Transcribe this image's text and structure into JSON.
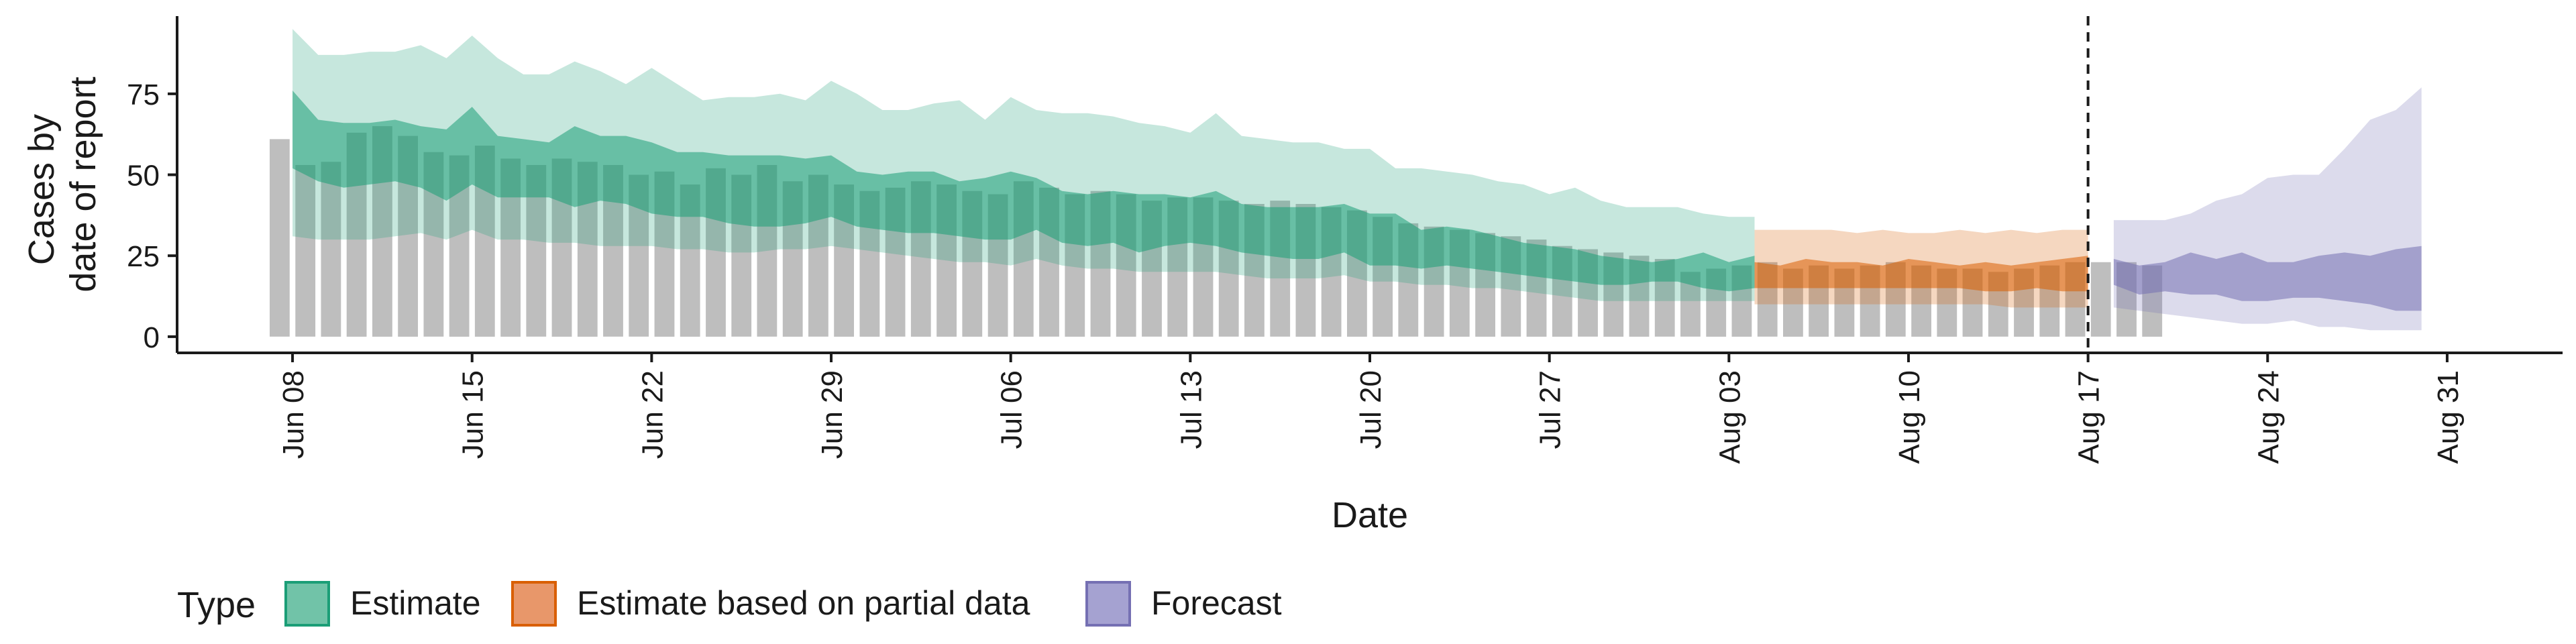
{
  "chart_data": {
    "type": "area",
    "xlabel": "Date",
    "ylabel": [
      "Cases by",
      "date of report"
    ],
    "x_tick_labels": [
      "Jun 08",
      "Jun 15",
      "Jun 22",
      "Jun 29",
      "Jul 06",
      "Jul 13",
      "Jul 20",
      "Jul 27",
      "Aug 03",
      "Aug 10",
      "Aug 17",
      "Aug 24",
      "Aug 31"
    ],
    "x_tick_days": [
      0,
      7,
      14,
      21,
      28,
      35,
      42,
      49,
      56,
      63,
      70,
      77,
      84
    ],
    "x_range_days": [
      -4.5,
      88.5
    ],
    "y_ticks": [
      0,
      25,
      50,
      75
    ],
    "ylim": [
      -5,
      99
    ],
    "forecast_start_day": 70,
    "legend": {
      "title": "Type",
      "position": "bottom",
      "entries": [
        {
          "label": "Estimate",
          "fill": "#71c3a8",
          "stroke": "#1b9e77"
        },
        {
          "label": "Estimate based on partial data",
          "fill": "#e8976a",
          "stroke": "#d95f02"
        },
        {
          "label": "Forecast",
          "fill": "#a5a2d1",
          "stroke": "#7570b3"
        }
      ]
    },
    "colors": {
      "bars": "#bebebe",
      "estimate": "#1b9e77",
      "partial": "#d95f02",
      "forecast": "#7570b3"
    },
    "reported_cases": {
      "start_day": -0.5,
      "values": [
        61,
        53,
        54,
        63,
        65,
        62,
        57,
        56,
        59,
        55,
        53,
        55,
        54,
        53,
        50,
        51,
        47,
        52,
        50,
        53,
        48,
        50,
        47,
        45,
        46,
        48,
        47,
        45,
        44,
        48,
        46,
        44,
        45,
        44,
        42,
        43,
        43,
        42,
        41,
        42,
        41,
        40,
        39,
        37,
        35,
        34,
        33,
        32,
        31,
        30,
        28,
        27,
        26,
        25,
        24,
        20,
        21,
        22,
        23,
        21,
        22,
        21,
        22,
        23,
        22,
        21,
        21,
        20,
        21,
        22,
        23,
        23,
        23,
        22
      ]
    },
    "series": [
      {
        "type": "Estimate",
        "start_day": 0,
        "outer_upper": [
          95,
          87,
          87,
          88,
          88,
          90,
          86,
          93,
          86,
          81,
          81,
          85,
          82,
          78,
          83,
          78,
          73,
          74,
          74,
          75,
          73,
          79,
          75,
          70,
          70,
          72,
          73,
          67,
          74,
          70,
          69,
          69,
          68,
          66,
          65,
          63,
          69,
          62,
          61,
          60,
          60,
          58,
          58,
          52,
          52,
          51,
          50,
          48,
          47,
          44,
          46,
          42,
          40,
          40,
          40,
          38,
          37,
          37
        ],
        "upper": [
          76,
          67,
          66,
          66,
          67,
          65,
          64,
          71,
          62,
          61,
          60,
          65,
          62,
          62,
          60,
          57,
          57,
          56,
          56,
          56,
          55,
          56,
          51,
          50,
          51,
          51,
          48,
          49,
          51,
          49,
          45,
          44,
          45,
          44,
          44,
          43,
          45,
          41,
          40,
          40,
          40,
          41,
          38,
          38,
          33,
          34,
          33,
          31,
          29,
          28,
          27,
          25,
          24,
          23,
          24,
          26,
          23,
          25
        ],
        "lower": [
          52,
          48,
          46,
          47,
          48,
          46,
          42,
          47,
          43,
          43,
          43,
          40,
          42,
          41,
          38,
          37,
          37,
          35,
          34,
          34,
          35,
          37,
          34,
          33,
          32,
          32,
          31,
          30,
          30,
          33,
          29,
          28,
          29,
          26,
          28,
          29,
          28,
          26,
          25,
          24,
          24,
          26,
          22,
          22,
          21,
          22,
          21,
          20,
          19,
          18,
          17,
          16,
          16,
          17,
          17,
          15,
          14,
          15
        ],
        "outer_lower": [
          31,
          30,
          30,
          30,
          31,
          32,
          30,
          33,
          30,
          30,
          29,
          29,
          28,
          28,
          28,
          27,
          27,
          26,
          26,
          27,
          27,
          28,
          27,
          26,
          25,
          24,
          23,
          23,
          22,
          24,
          22,
          21,
          21,
          20,
          20,
          20,
          20,
          19,
          18,
          18,
          18,
          19,
          17,
          17,
          16,
          16,
          15,
          15,
          14,
          13,
          12,
          11,
          11,
          11,
          11,
          11,
          11,
          11
        ]
      },
      {
        "type": "Estimate based on partial data",
        "start_day": 57,
        "outer_upper": [
          33,
          33,
          33,
          33,
          32,
          33,
          32,
          32,
          33,
          32,
          33,
          32,
          33,
          33
        ],
        "upper": [
          23,
          22,
          24,
          23,
          23,
          22,
          24,
          23,
          22,
          23,
          22,
          23,
          24,
          25
        ],
        "lower": [
          15,
          15,
          15,
          15,
          15,
          15,
          15,
          15,
          15,
          14,
          14,
          15,
          14,
          14
        ],
        "outer_lower": [
          10,
          10,
          10,
          10,
          10,
          10,
          10,
          10,
          10,
          10,
          9,
          9,
          9,
          9
        ]
      },
      {
        "type": "Forecast",
        "start_day": 71,
        "outer_upper": [
          36,
          36,
          36,
          38,
          42,
          44,
          49,
          50,
          50,
          58,
          67,
          70,
          77
        ],
        "upper": [
          24,
          22,
          23,
          26,
          24,
          26,
          23,
          23,
          25,
          26,
          25,
          27,
          28
        ],
        "lower": [
          16,
          13,
          14,
          13,
          13,
          11,
          11,
          12,
          12,
          11,
          10,
          8,
          8
        ],
        "outer_lower": [
          9,
          8,
          7,
          6,
          5,
          4,
          4,
          5,
          3,
          3,
          2,
          2,
          2
        ]
      }
    ]
  }
}
